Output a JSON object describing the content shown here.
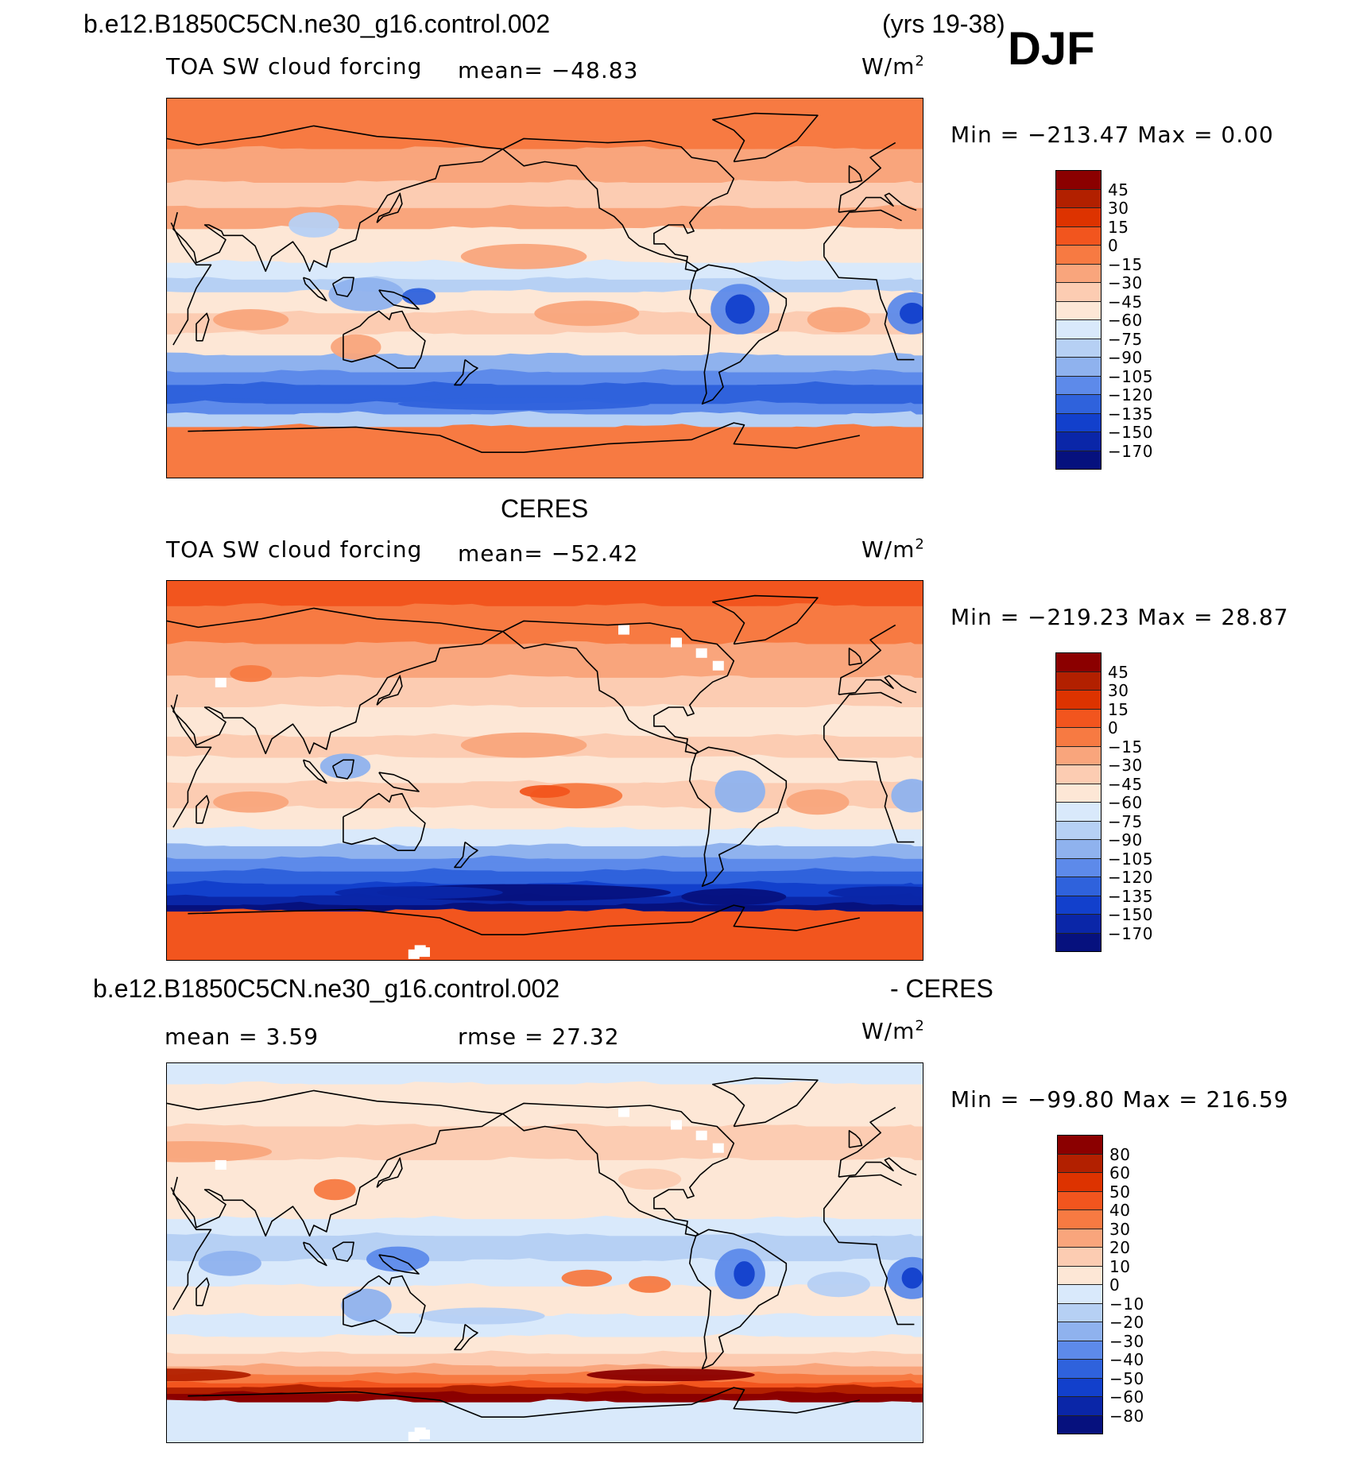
{
  "figure": {
    "case_name": "b.e12.B1850C5CN.ne30_g16.control.002",
    "years": "(yrs 19-38)",
    "season": "DJF"
  },
  "panels": [
    {
      "id": "model",
      "header_left": "",
      "header_right": "",
      "variable": "TOA SW cloud forcing",
      "stat1": "mean= −48.83",
      "stat2": "",
      "units_base": "W/m",
      "units_exp": "2",
      "min_max": "Min = −213.47  Max =    0.00",
      "colorbar_labels": [
        "45",
        "30",
        "15",
        "0",
        "−15",
        "−30",
        "−45",
        "−60",
        "−75",
        "−90",
        "−105",
        "−120",
        "−135",
        "−150",
        "−170"
      ],
      "palette": "absolute"
    },
    {
      "id": "obs",
      "header_left": "CERES",
      "header_right": "",
      "variable": "TOA SW cloud forcing",
      "stat1": "mean= −52.42",
      "stat2": "",
      "units_base": "W/m",
      "units_exp": "2",
      "min_max": "Min = −219.23  Max =   28.87",
      "colorbar_labels": [
        "45",
        "30",
        "15",
        "0",
        "−15",
        "−30",
        "−45",
        "−60",
        "−75",
        "−90",
        "−105",
        "−120",
        "−135",
        "−150",
        "−170"
      ],
      "palette": "absolute"
    },
    {
      "id": "diff",
      "header_left": "b.e12.B1850C5CN.ne30_g16.control.002",
      "header_right": "- CERES",
      "variable": "",
      "stat1": "mean =    3.59",
      "stat2": "rmse =   27.32",
      "units_base": "W/m",
      "units_exp": "2",
      "min_max": "Min = −99.80  Max = 216.59",
      "colorbar_labels": [
        "80",
        "60",
        "50",
        "40",
        "30",
        "20",
        "10",
        "0",
        "−10",
        "−20",
        "−30",
        "−40",
        "−50",
        "−60",
        "−80"
      ],
      "palette": "difference"
    }
  ],
  "colors": {
    "palette_16": [
      "#8b0000",
      "#b22000",
      "#dd3300",
      "#f2551e",
      "#f77a42",
      "#f9a57c",
      "#fcccb2",
      "#fde7d6",
      "#d9e9fb",
      "#b6d0f4",
      "#8fb2ee",
      "#5d8aea",
      "#2f62dc",
      "#1240cc",
      "#0a26a8",
      "#06117e"
    ],
    "coastline": "#000000",
    "missing": "#ffffff"
  },
  "chart_data": [
    {
      "type": "heatmap",
      "title": "TOA SW cloud forcing",
      "units": "W/m2",
      "mean": -48.83,
      "min": -213.47,
      "max": 0.0,
      "contour_levels": [
        -170,
        -150,
        -135,
        -120,
        -105,
        -90,
        -75,
        -60,
        -45,
        -30,
        -15,
        0,
        15,
        30,
        45
      ],
      "zonal_mean_profile": {
        "latitude": [
          80,
          60,
          40,
          20,
          0,
          -20,
          -40,
          -50,
          -60,
          -70,
          -85
        ],
        "value": [
          -5,
          -20,
          -45,
          -40,
          -60,
          -45,
          -100,
          -110,
          -85,
          -30,
          -5
        ]
      }
    },
    {
      "type": "heatmap",
      "title": "TOA SW cloud forcing",
      "source": "CERES",
      "units": "W/m2",
      "mean": -52.42,
      "min": -219.23,
      "max": 28.87,
      "contour_levels": [
        -170,
        -150,
        -135,
        -120,
        -105,
        -90,
        -75,
        -60,
        -45,
        -30,
        -15,
        0,
        15,
        30,
        45
      ],
      "zonal_mean_profile": {
        "latitude": [
          80,
          60,
          40,
          20,
          0,
          -20,
          -40,
          -50,
          -60,
          -70,
          -85
        ],
        "value": [
          5,
          -15,
          -45,
          -35,
          -55,
          -45,
          -100,
          -130,
          -160,
          -140,
          5
        ]
      }
    },
    {
      "type": "heatmap",
      "title": "b.e12.B1850C5CN.ne30_g16.control.002 - CERES",
      "units": "W/m2",
      "mean": 3.59,
      "rmse": 27.32,
      "min": -99.8,
      "max": 216.59,
      "contour_levels": [
        -80,
        -60,
        -50,
        -40,
        -30,
        -20,
        -10,
        0,
        10,
        20,
        30,
        40,
        50,
        60,
        80
      ],
      "zonal_mean_profile": {
        "latitude": [
          80,
          60,
          40,
          20,
          0,
          -20,
          -40,
          -50,
          -60,
          -70,
          -85
        ],
        "value": [
          0,
          5,
          10,
          5,
          -15,
          -20,
          -5,
          10,
          60,
          90,
          -5
        ]
      }
    }
  ]
}
